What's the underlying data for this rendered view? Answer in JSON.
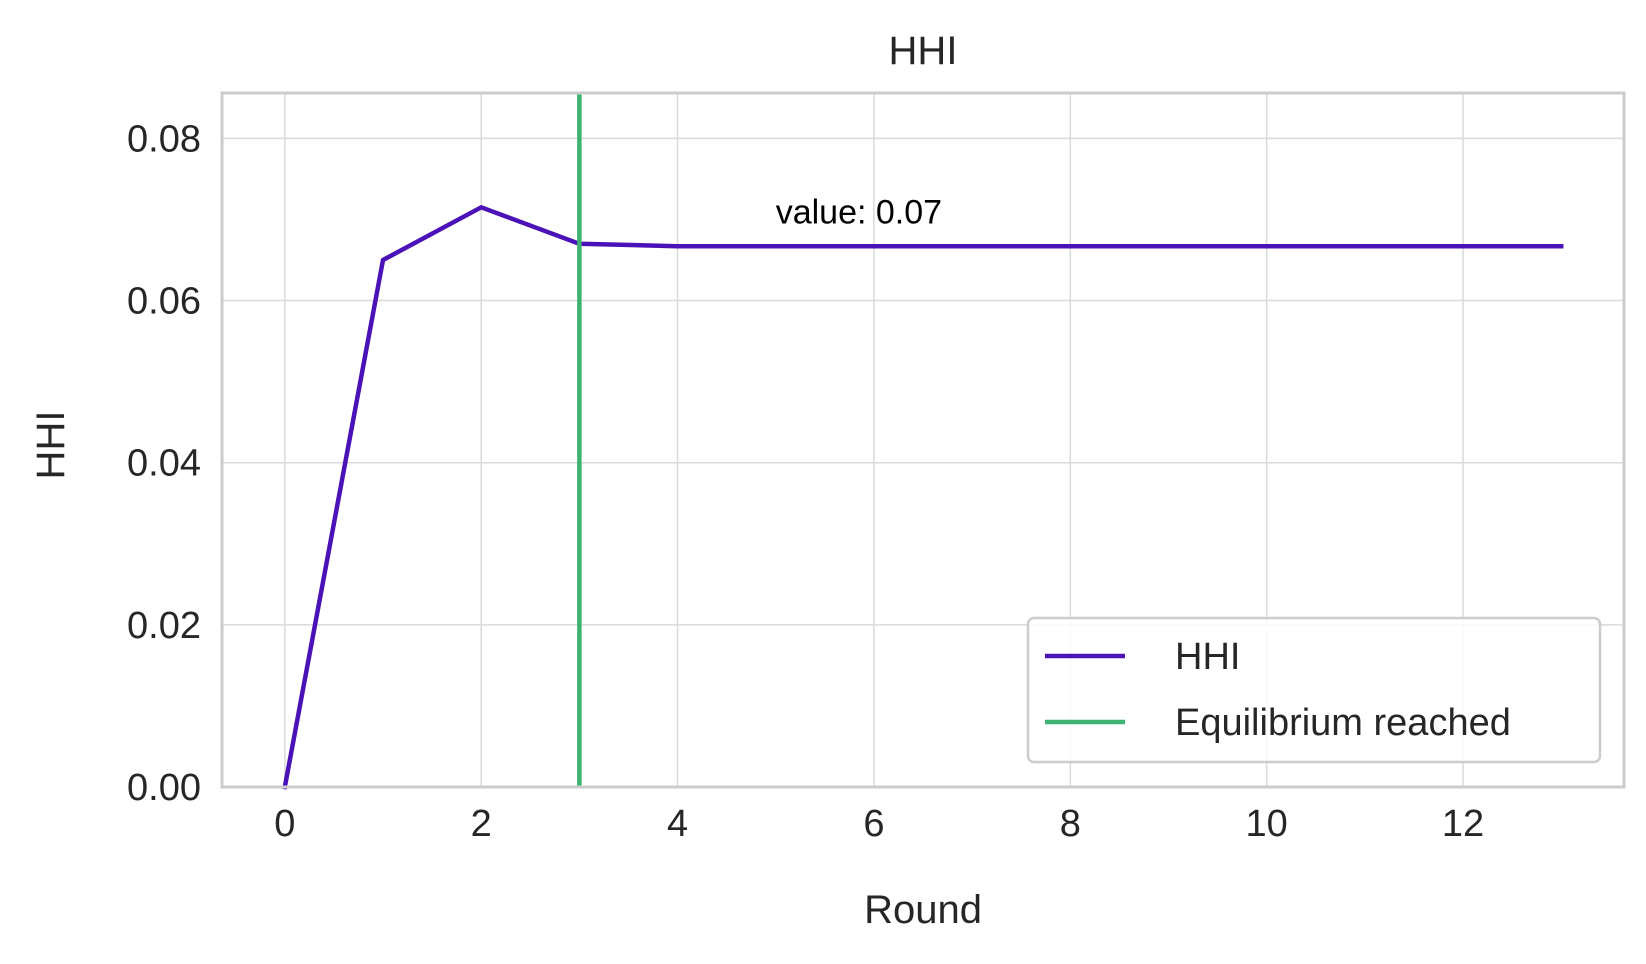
{
  "chart_data": {
    "type": "line",
    "title": "HHI",
    "xlabel": "Round",
    "ylabel": "HHI",
    "xlim": [
      -0.64,
      13.64
    ],
    "ylim": [
      0,
      0.0856
    ],
    "xticks": [
      0,
      2,
      4,
      6,
      8,
      10,
      12
    ],
    "yticks": [
      0.0,
      0.02,
      0.04,
      0.06,
      0.08
    ],
    "ytick_labels": [
      "0.00",
      "0.02",
      "0.04",
      "0.06",
      "0.08"
    ],
    "grid": true,
    "legend_position": "lower-right",
    "series": [
      {
        "name": "HHI",
        "color": "#4b12b8",
        "x": [
          0,
          1,
          2,
          3,
          4,
          5,
          6,
          7,
          8,
          9,
          10,
          11,
          12,
          13
        ],
        "values": [
          0.0,
          0.065,
          0.0715,
          0.067,
          0.0667,
          0.0667,
          0.0667,
          0.0667,
          0.0667,
          0.0667,
          0.0667,
          0.0667,
          0.0667,
          0.0667
        ]
      }
    ],
    "vlines": [
      {
        "name": "Equilibrium reached",
        "x": 3,
        "color": "#3cb371"
      }
    ],
    "annotations": [
      {
        "text": "value: 0.07",
        "x": 5,
        "y": 0.0695
      }
    ]
  }
}
